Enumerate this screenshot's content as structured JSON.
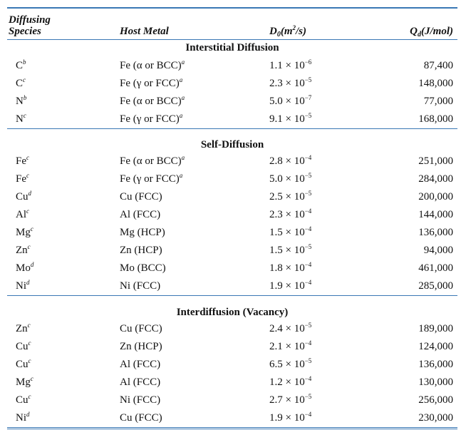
{
  "header": {
    "species": [
      "Diffusing",
      "Species"
    ],
    "host": "Host Metal",
    "d0": {
      "symbol": "D",
      "sub": "0",
      "unit_open": "(m",
      "unit_sup": "2",
      "unit_close": "/s)"
    },
    "qd": {
      "symbol": "Q",
      "sub": "d",
      "unit": "(J/mol)"
    }
  },
  "sections": [
    {
      "title": "Interstitial Diffusion",
      "rows": [
        {
          "species": "C",
          "species_note": "b",
          "host": "Fe (α or BCC)",
          "host_note": "a",
          "d0": "1.1 × 10",
          "d0_exp": "−6",
          "qd": "87,400"
        },
        {
          "species": "C",
          "species_note": "c",
          "host": "Fe (γ or FCC)",
          "host_note": "a",
          "d0": "2.3 × 10",
          "d0_exp": "−5",
          "qd": "148,000"
        },
        {
          "species": "N",
          "species_note": "b",
          "host": "Fe (α or BCC)",
          "host_note": "a",
          "d0": "5.0 × 10",
          "d0_exp": "−7",
          "qd": "77,000"
        },
        {
          "species": "N",
          "species_note": "c",
          "host": "Fe (γ or FCC)",
          "host_note": "a",
          "d0": "9.1 × 10",
          "d0_exp": "−5",
          "qd": "168,000"
        }
      ]
    },
    {
      "title": "Self-Diffusion",
      "rows": [
        {
          "species": "Fe",
          "species_note": "c",
          "host": "Fe (α or BCC)",
          "host_note": "a",
          "d0": "2.8 × 10",
          "d0_exp": "−4",
          "qd": "251,000"
        },
        {
          "species": "Fe",
          "species_note": "c",
          "host": "Fe (γ or FCC)",
          "host_note": "a",
          "d0": "5.0 × 10",
          "d0_exp": "−5",
          "qd": "284,000"
        },
        {
          "species": "Cu",
          "species_note": "d",
          "host": "Cu (FCC)",
          "d0": "2.5 × 10",
          "d0_exp": "−5",
          "qd": "200,000"
        },
        {
          "species": "Al",
          "species_note": "c",
          "host": "Al (FCC)",
          "d0": "2.3 × 10",
          "d0_exp": "−4",
          "qd": "144,000"
        },
        {
          "species": "Mg",
          "species_note": "c",
          "host": "Mg (HCP)",
          "d0": "1.5 × 10",
          "d0_exp": "−4",
          "qd": "136,000"
        },
        {
          "species": "Zn",
          "species_note": "c",
          "host": "Zn (HCP)",
          "d0": "1.5 × 10",
          "d0_exp": "−5",
          "qd": "94,000"
        },
        {
          "species": "Mo",
          "species_note": "d",
          "host": "Mo (BCC)",
          "d0": "1.8 × 10",
          "d0_exp": "−4",
          "qd": "461,000"
        },
        {
          "species": "Ni",
          "species_note": "d",
          "host": "Ni (FCC)",
          "d0": "1.9 × 10",
          "d0_exp": "−4",
          "qd": "285,000"
        }
      ]
    },
    {
      "title": "Interdiffusion (Vacancy)",
      "rows": [
        {
          "species": "Zn",
          "species_note": "c",
          "host": "Cu (FCC)",
          "d0": "2.4 × 10",
          "d0_exp": "−5",
          "qd": "189,000"
        },
        {
          "species": "Cu",
          "species_note": "c",
          "host": "Zn (HCP)",
          "d0": "2.1 × 10",
          "d0_exp": "−4",
          "qd": "124,000"
        },
        {
          "species": "Cu",
          "species_note": "c",
          "host": "Al (FCC)",
          "d0": "6.5 × 10",
          "d0_exp": "−5",
          "qd": "136,000"
        },
        {
          "species": "Mg",
          "species_note": "c",
          "host": "Al (FCC)",
          "d0": "1.2 × 10",
          "d0_exp": "−4",
          "qd": "130,000"
        },
        {
          "species": "Cu",
          "species_note": "c",
          "host": "Ni (FCC)",
          "d0": "2.7 × 10",
          "d0_exp": "−5",
          "qd": "256,000"
        },
        {
          "species": "Ni",
          "species_note": "d",
          "host": "Cu (FCC)",
          "d0": "1.9 × 10",
          "d0_exp": "−4",
          "qd": "230,000"
        }
      ]
    }
  ]
}
